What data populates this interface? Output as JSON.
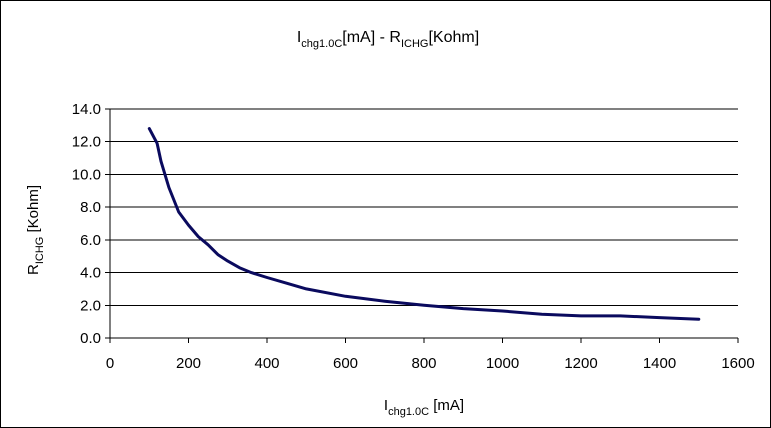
{
  "chart_data": {
    "type": "line",
    "title": {
      "part1": "I",
      "part1_sub": "chg1.0C",
      "part2": "[mA] - R",
      "part2_sub": "ICHG",
      "part3": "[Kohm]"
    },
    "xlabel": {
      "main": "I",
      "sub": "chg1.0C",
      "unit": " [mA]"
    },
    "ylabel": {
      "main": "R",
      "sub": "ICHG",
      "unit": " [Kohm]"
    },
    "xlim": [
      0,
      1600
    ],
    "ylim": [
      0,
      14
    ],
    "x_ticks": [
      "0",
      "200",
      "400",
      "600",
      "800",
      "1000",
      "1200",
      "1400",
      "1600"
    ],
    "y_ticks": [
      "0.0",
      "2.0",
      "4.0",
      "6.0",
      "8.0",
      "10.0",
      "12.0",
      "14.0"
    ],
    "grid": "horizontal",
    "line_color": "#0a0a5e",
    "series": [
      {
        "x": [
          100,
          120,
          130,
          150,
          175,
          200,
          225,
          250,
          275,
          300,
          330,
          360,
          400,
          450,
          500,
          600,
          700,
          800,
          900,
          1000,
          1100,
          1200,
          1300,
          1400,
          1500
        ],
        "y": [
          12.8,
          11.9,
          10.8,
          9.2,
          7.7,
          6.9,
          6.2,
          5.7,
          5.1,
          4.7,
          4.3,
          4.0,
          3.7,
          3.35,
          3.0,
          2.55,
          2.25,
          2.0,
          1.8,
          1.65,
          1.45,
          1.35,
          1.35,
          1.25,
          1.15
        ]
      }
    ]
  }
}
